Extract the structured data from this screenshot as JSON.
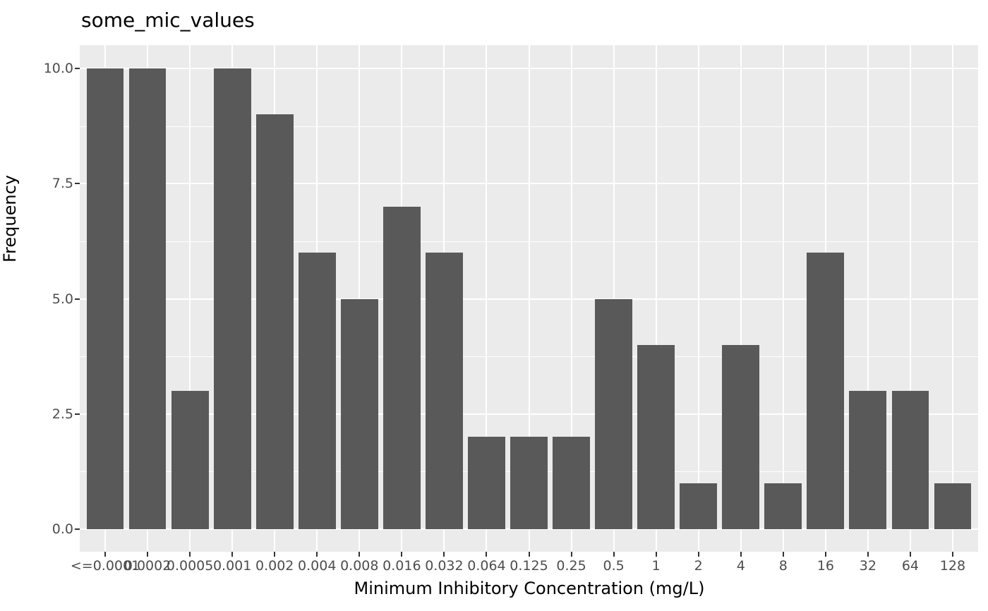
{
  "chart_data": {
    "type": "bar",
    "title": "some_mic_values",
    "xlabel": "Minimum Inhibitory Concentration (mg/L)",
    "ylabel": "Frequency",
    "categories": [
      "<=0.0001",
      "0.0002",
      "0.0005",
      "0.001",
      "0.002",
      "0.004",
      "0.008",
      "0.016",
      "0.032",
      "0.064",
      "0.125",
      "0.25",
      "0.5",
      "1",
      "2",
      "4",
      "8",
      "16",
      "32",
      "64",
      "128"
    ],
    "values": [
      10,
      10,
      3,
      10,
      9,
      6,
      5,
      7,
      6,
      2,
      2,
      2,
      5,
      4,
      1,
      4,
      1,
      6,
      3,
      3,
      1
    ],
    "ylim": [
      0,
      10
    ],
    "yticks": [
      0.0,
      2.5,
      5.0,
      7.5,
      10.0
    ],
    "ytick_labels": [
      "0.0",
      "2.5",
      "5.0",
      "7.5",
      "10.0"
    ],
    "grid": "white major and minor horizontal gridlines, white vertical gridlines at category centers, on gray panel",
    "legend_position": "none",
    "colors": {
      "bar": "#595959",
      "panel_background": "#EBEBEB",
      "gridline": "#FFFFFF",
      "axis_text": "#4D4D4D",
      "tick_mark": "#333333",
      "title_text": "#000000"
    }
  }
}
